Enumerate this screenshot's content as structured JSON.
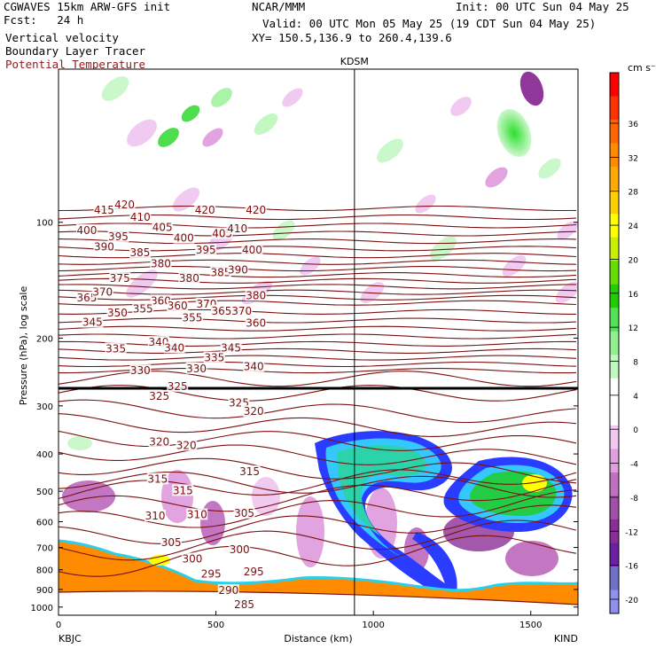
{
  "header": {
    "left": [
      "CGWAVES 15km ARW-GFS init",
      "Fcst:   24 h",
      "Vertical velocity",
      "Boundary Layer Tracer",
      "Potential Temperature"
    ],
    "center": "NCAR/MMM",
    "init": "Init: 00 UTC Sun 04 May 25",
    "valid": "Valid: 00 UTC Mon 05 May 25 (19 CDT Sun 04 May 25)",
    "xy": "XY= 150.5,136.9 to 260.4,139.6"
  },
  "chart_data": {
    "type": "contour",
    "station_marker": {
      "label": "KDSM",
      "x": 940
    },
    "x_axis": {
      "label": "Distance (km)",
      "range": [
        0,
        1650
      ],
      "ticks": [
        0,
        500,
        1000,
        1500
      ],
      "endpoint_labels": [
        "KBJC",
        "KIND"
      ]
    },
    "y_axis": {
      "label": "Pressure (hPa), log scale",
      "scale": "log",
      "range": [
        1050,
        40
      ],
      "ticks": [
        100,
        200,
        300,
        400,
        500,
        600,
        700,
        800,
        900,
        1000
      ]
    },
    "colorbar": {
      "unit": "cm s⁻¹",
      "labels": [
        36,
        32,
        28,
        24,
        20,
        16,
        12,
        8,
        4,
        0,
        -4,
        -8,
        -12,
        -16,
        -20
      ],
      "colors": [
        "#ff0000",
        "#ff3300",
        "#ff6600",
        "#ff8c00",
        "#ffaa00",
        "#ffd000",
        "#ffff00",
        "#c8f000",
        "#66dd00",
        "#22cc00",
        "#55e055",
        "#90f090",
        "#c0f8c0",
        "#ffffff",
        "#ffffff",
        "#f0c8f0",
        "#e0a0e0",
        "#c070c0",
        "#a050a8",
        "#8a2d96",
        "#6a20a0",
        "#7070c8",
        "#9090f0"
      ]
    },
    "theta_labels": [
      {
        "v": "415",
        "x": 145,
        "p": 93
      },
      {
        "v": "420",
        "x": 210,
        "p": 90
      },
      {
        "v": "420",
        "x": 465,
        "p": 93
      },
      {
        "v": "420",
        "x": 627,
        "p": 93
      },
      {
        "v": "410",
        "x": 260,
        "p": 97
      },
      {
        "v": "405",
        "x": 330,
        "p": 103
      },
      {
        "v": "400",
        "x": 90,
        "p": 105
      },
      {
        "v": "400",
        "x": 398,
        "p": 110
      },
      {
        "v": "405",
        "x": 520,
        "p": 107
      },
      {
        "v": "410",
        "x": 568,
        "p": 104
      },
      {
        "v": "400",
        "x": 615,
        "p": 118
      },
      {
        "v": "390",
        "x": 145,
        "p": 116
      },
      {
        "v": "395",
        "x": 190,
        "p": 109
      },
      {
        "v": "385",
        "x": 259,
        "p": 120
      },
      {
        "v": "380",
        "x": 325,
        "p": 128
      },
      {
        "v": "395",
        "x": 468,
        "p": 118
      },
      {
        "v": "385",
        "x": 515,
        "p": 135
      },
      {
        "v": "390",
        "x": 570,
        "p": 133
      },
      {
        "v": "375",
        "x": 195,
        "p": 140
      },
      {
        "v": "380",
        "x": 415,
        "p": 140
      },
      {
        "v": "380",
        "x": 627,
        "p": 155
      },
      {
        "v": "365",
        "x": 90,
        "p": 157
      },
      {
        "v": "370",
        "x": 140,
        "p": 152
      },
      {
        "v": "360",
        "x": 325,
        "p": 160
      },
      {
        "v": "360",
        "x": 378,
        "p": 165
      },
      {
        "v": "370",
        "x": 470,
        "p": 163
      },
      {
        "v": "365",
        "x": 518,
        "p": 170
      },
      {
        "v": "370",
        "x": 582,
        "p": 170
      },
      {
        "v": "360",
        "x": 627,
        "p": 183
      },
      {
        "v": "345",
        "x": 108,
        "p": 182
      },
      {
        "v": "350",
        "x": 187,
        "p": 172
      },
      {
        "v": "355",
        "x": 268,
        "p": 168
      },
      {
        "v": "355",
        "x": 425,
        "p": 177
      },
      {
        "v": "340",
        "x": 318,
        "p": 205
      },
      {
        "v": "340",
        "x": 368,
        "p": 212
      },
      {
        "v": "335",
        "x": 182,
        "p": 213
      },
      {
        "v": "345",
        "x": 548,
        "p": 212
      },
      {
        "v": "340",
        "x": 620,
        "p": 237
      },
      {
        "v": "330",
        "x": 260,
        "p": 243
      },
      {
        "v": "335",
        "x": 495,
        "p": 225
      },
      {
        "v": "330",
        "x": 438,
        "p": 240
      },
      {
        "v": "325",
        "x": 320,
        "p": 283
      },
      {
        "v": "325",
        "x": 378,
        "p": 267
      },
      {
        "v": "325",
        "x": 573,
        "p": 295
      },
      {
        "v": "320",
        "x": 320,
        "p": 372
      },
      {
        "v": "320",
        "x": 406,
        "p": 380
      },
      {
        "v": "320",
        "x": 620,
        "p": 310
      },
      {
        "v": "315",
        "x": 315,
        "p": 465
      },
      {
        "v": "315",
        "x": 395,
        "p": 498
      },
      {
        "v": "315",
        "x": 607,
        "p": 445
      },
      {
        "v": "310",
        "x": 307,
        "p": 580
      },
      {
        "v": "310",
        "x": 440,
        "p": 575
      },
      {
        "v": "305",
        "x": 358,
        "p": 680
      },
      {
        "v": "305",
        "x": 590,
        "p": 570
      },
      {
        "v": "300",
        "x": 425,
        "p": 750
      },
      {
        "v": "300",
        "x": 575,
        "p": 710
      },
      {
        "v": "295",
        "x": 485,
        "p": 820
      },
      {
        "v": "295",
        "x": 620,
        "p": 810
      },
      {
        "v": "290",
        "x": 540,
        "p": 905
      },
      {
        "v": "285",
        "x": 590,
        "p": 985
      }
    ]
  }
}
